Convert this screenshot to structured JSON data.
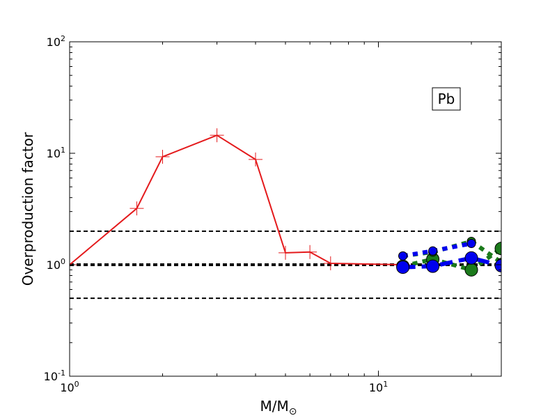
{
  "chart_data": {
    "type": "line",
    "xlabel": "M/M",
    "xlabel_sub": "⊙",
    "ylabel": "Overproduction factor",
    "xscale": "log",
    "yscale": "log",
    "xlim": [
      1,
      25
    ],
    "ylim": [
      0.1,
      100
    ],
    "x_ticks": [
      {
        "value": 1,
        "base": "10",
        "exp": "0"
      },
      {
        "value": 10,
        "base": "10",
        "exp": "1"
      }
    ],
    "y_ticks": [
      {
        "value": 0.1,
        "base": "10",
        "exp": "-1"
      },
      {
        "value": 1,
        "base": "10",
        "exp": "0"
      },
      {
        "value": 10,
        "base": "10",
        "exp": "1"
      },
      {
        "value": 100,
        "base": "10",
        "exp": "2"
      }
    ],
    "annotation": "Pb",
    "grid": false,
    "reference_lines": [
      {
        "y": 2,
        "style": "dashed",
        "color": "#000000",
        "width": 2
      },
      {
        "y": 1,
        "style": "dashed",
        "color": "#000000",
        "width": 4
      },
      {
        "y": 0.5,
        "style": "dashed",
        "color": "#000000",
        "width": 2
      }
    ],
    "series": [
      {
        "color": "#e41a1c",
        "line": "solid",
        "marker": "plus",
        "x": [
          1.0,
          1.65,
          2.0,
          3.0,
          4.0,
          5.0,
          6.0,
          7.0,
          12.0
        ],
        "y": [
          1.0,
          3.2,
          9.3,
          14.5,
          8.8,
          1.28,
          1.3,
          1.03,
          1.0
        ]
      },
      {
        "color": "#1b7a1b",
        "line": "dotted",
        "marker": "circle-large",
        "x": [
          12.0,
          15.0,
          20.0,
          25.0
        ],
        "y": [
          0.97,
          1.12,
          0.9,
          1.4
        ]
      },
      {
        "color": "#1b7a1b",
        "line": "dotted",
        "marker": "circle-small",
        "x": [
          12.0,
          15.0,
          20.0,
          25.0
        ],
        "y": [
          1.2,
          1.3,
          1.62,
          1.05
        ]
      },
      {
        "color": "#0000ee",
        "line": "dashed",
        "marker": "circle-large",
        "x": [
          12.0,
          15.0,
          20.0,
          25.0
        ],
        "y": [
          0.95,
          0.97,
          1.15,
          0.98
        ]
      },
      {
        "color": "#0000ee",
        "line": "dotted",
        "marker": "circle-small",
        "x": [
          12.0,
          15.0,
          20.0
        ],
        "y": [
          1.2,
          1.33,
          1.55
        ]
      }
    ]
  }
}
